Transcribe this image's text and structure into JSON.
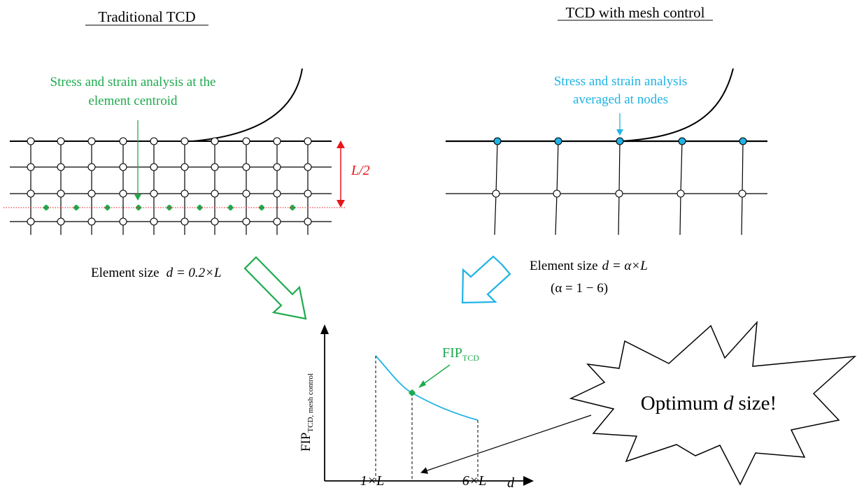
{
  "left_panel": {
    "title": "Traditional TCD",
    "annotation_line1": "Stress and strain analysis at the",
    "annotation_line2": "element centroid",
    "dim_label": "L/2",
    "element_size_label": "Element size",
    "element_size_formula": "d = 0.2×L"
  },
  "right_panel": {
    "title": "TCD with mesh control",
    "annotation_line1": "Stress and strain analysis",
    "annotation_line2": "averaged at nodes",
    "element_size_label": "Element size",
    "element_size_formula": "d = α×L",
    "alpha_range": "(α = 1 − 6)"
  },
  "graph": {
    "ylabel_main": "FIP",
    "ylabel_sub": "TCD, mesh control",
    "xlabel": "d",
    "tick_left": "1×L",
    "tick_right": "6×L",
    "point_label_main": "FIP",
    "point_label_sub": "TCD",
    "curve_color": "#1fb3e6",
    "point_color": "#1faa4f"
  },
  "callout": {
    "text_before": "Optimum",
    "text_var": "d",
    "text_after": "size!"
  },
  "colors": {
    "green": "#1faa4f",
    "blue": "#1fb3e6",
    "red": "#e8141c",
    "black": "#000000"
  }
}
